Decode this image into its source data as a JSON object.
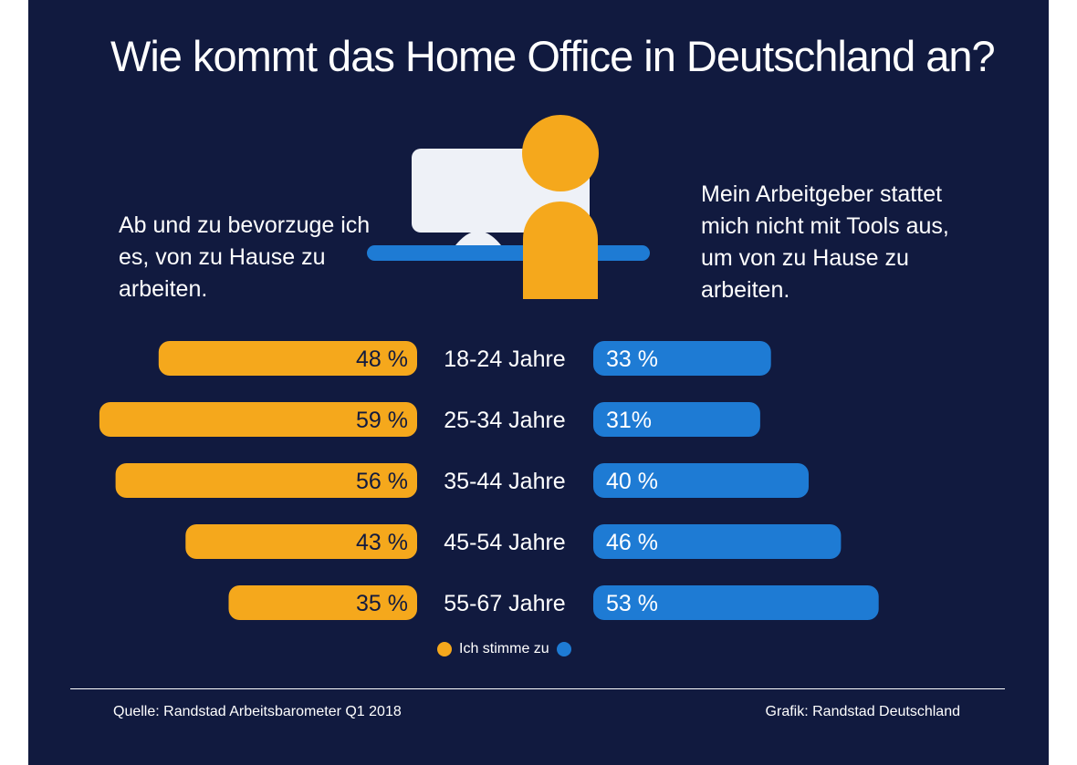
{
  "title": "Wie kommt das Home Office in Deutschland an?",
  "left_statement": "Ab und zu bevorzuge ich es, von zu Hause zu arbeiten.",
  "right_statement": "Mein Arbeitgeber stattet mich nicht mit Tools aus, um von zu Hause zu arbeiten.",
  "legend": {
    "label": "Ich stimme zu"
  },
  "source": "Quelle: Randstad Arbeitsbarometer Q1 2018",
  "credit": "Grafik: Randstad Deutschland",
  "colors": {
    "background": "#111a3f",
    "left_series": "#f5a81c",
    "right_series": "#1e7bd4",
    "monitor": "#eef1f7"
  },
  "icons": [
    "computer-monitor-icon",
    "person-icon",
    "desk-icon"
  ],
  "chart_data": {
    "type": "bar",
    "orientation": "horizontal-diverging",
    "categories": [
      "18-24 Jahre",
      "25-34 Jahre",
      "35-44 Jahre",
      "45-54 Jahre",
      "55-67 Jahre"
    ],
    "series": [
      {
        "values": [
          48,
          59,
          56,
          43,
          35
        ],
        "labels": [
          "48 %",
          "59 %",
          "56 %",
          "43 %",
          "35 %"
        ],
        "side": "left"
      },
      {
        "values": [
          33,
          31,
          40,
          46,
          53
        ],
        "labels": [
          "33 %",
          "31%",
          "40 %",
          "46 %",
          "53 %"
        ],
        "side": "right"
      }
    ],
    "legend_position": "bottom-center"
  }
}
